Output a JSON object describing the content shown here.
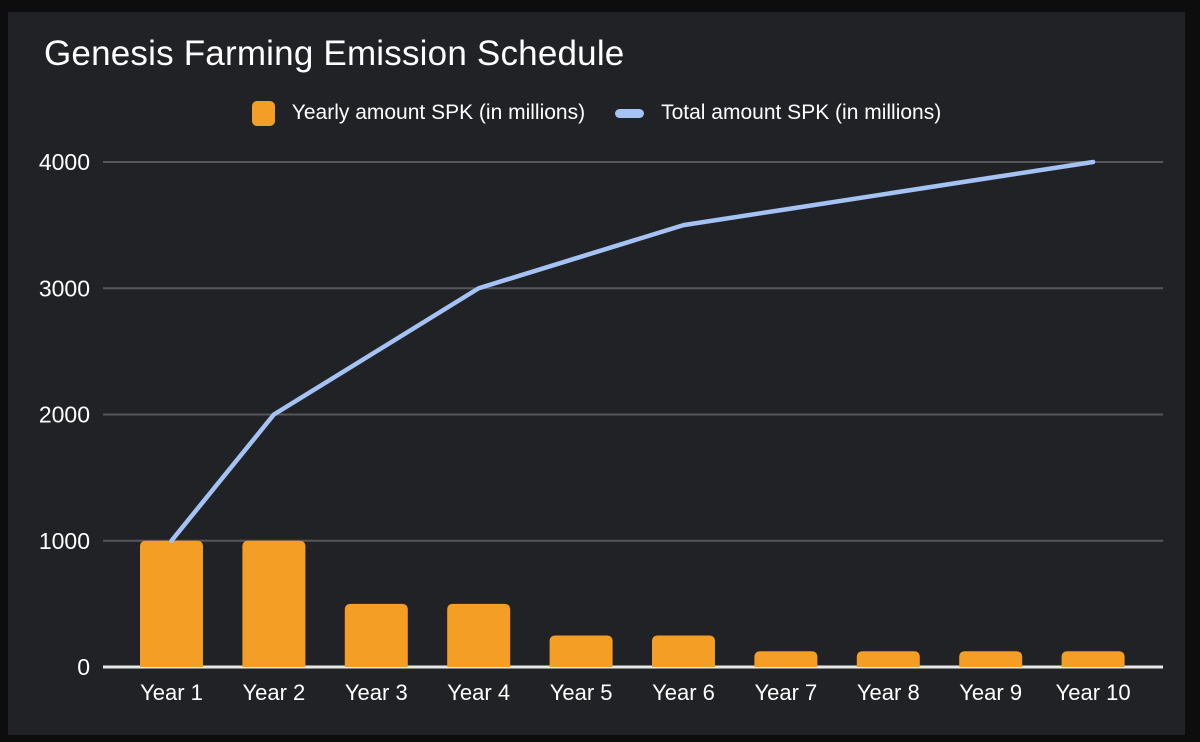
{
  "page": {
    "background": "#0D0D0D",
    "panel_background": "#212226"
  },
  "chart_data": {
    "type": "combo",
    "title": "Genesis Farming Emission Schedule",
    "categories": [
      "Year 1",
      "Year 2",
      "Year 3",
      "Year 4",
      "Year 5",
      "Year 6",
      "Year 7",
      "Year 8",
      "Year 9",
      "Year 10"
    ],
    "series": [
      {
        "name": "Yearly amount SPK (in millions)",
        "type": "bar",
        "color": "#F49E25",
        "values": [
          1000,
          1000,
          500,
          500,
          250,
          250,
          125,
          125,
          125,
          125
        ]
      },
      {
        "name": "Total amount SPK (in millions)",
        "type": "line",
        "color": "#A4C2F4",
        "values": [
          1000,
          2000,
          2500,
          3000,
          3250,
          3500,
          3625,
          3750,
          3875,
          4000
        ]
      }
    ],
    "xlabel": "",
    "ylabel": "",
    "ylim": [
      0,
      4000
    ],
    "yticks": [
      0,
      1000,
      2000,
      3000,
      4000
    ],
    "grid": "horizontal-only",
    "legend_position": "top",
    "colors": {
      "axis_line": "#E8E8E8",
      "gridline": "#56575A",
      "text": "#FFFFFF"
    }
  }
}
